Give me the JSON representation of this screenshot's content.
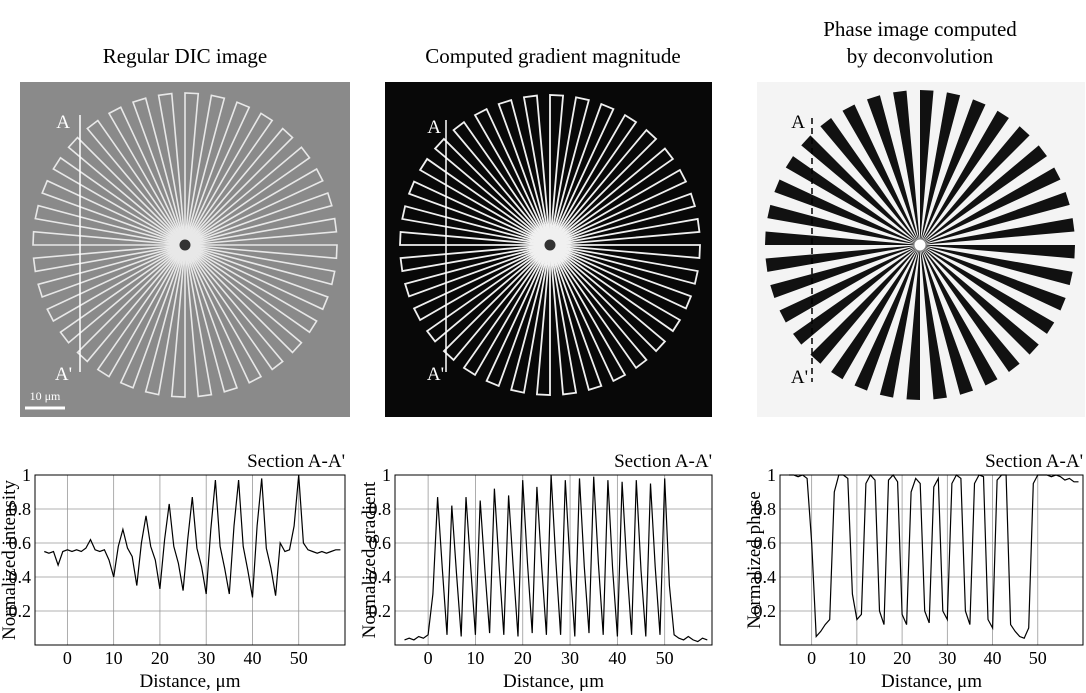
{
  "panels": [
    {
      "title_lines": [
        "Regular DIC image"
      ],
      "labels": {
        "top": "A",
        "bottom": "A'"
      },
      "scale_bar": "10 μm"
    },
    {
      "title_lines": [
        "Computed gradient magnitude"
      ],
      "labels": {
        "top": "A",
        "bottom": "A'"
      }
    },
    {
      "title_lines": [
        "Phase image computed",
        "by deconvolution"
      ],
      "labels": {
        "top": "A",
        "bottom": "A'"
      }
    }
  ],
  "chart_data": [
    {
      "type": "line",
      "annotation": "Section A-A'",
      "x_label": "Distance, μm",
      "y_label": "Normalized intensity",
      "color": "#000000",
      "grid": true,
      "xlim": [
        -7,
        60
      ],
      "xticks": [
        0,
        10,
        20,
        30,
        40,
        50
      ],
      "ylim": [
        0,
        1
      ],
      "yticks": [
        0.2,
        0.4,
        0.6,
        0.8,
        1
      ],
      "x": [
        -5,
        -4,
        -3,
        -2,
        -1,
        0,
        1,
        2,
        3,
        4,
        5,
        6,
        7,
        8,
        9,
        10,
        11,
        12,
        13,
        14,
        15,
        16,
        17,
        18,
        19,
        20,
        21,
        22,
        23,
        24,
        25,
        26,
        27,
        28,
        29,
        30,
        31,
        32,
        33,
        34,
        35,
        36,
        37,
        38,
        39,
        40,
        41,
        42,
        43,
        44,
        45,
        46,
        47,
        48,
        49,
        50,
        51,
        52,
        53,
        54,
        55,
        56,
        57,
        58,
        59
      ],
      "values": [
        0.55,
        0.54,
        0.55,
        0.47,
        0.55,
        0.56,
        0.55,
        0.56,
        0.55,
        0.57,
        0.62,
        0.56,
        0.55,
        0.56,
        0.5,
        0.4,
        0.58,
        0.68,
        0.57,
        0.52,
        0.35,
        0.6,
        0.76,
        0.58,
        0.5,
        0.33,
        0.62,
        0.83,
        0.58,
        0.48,
        0.32,
        0.62,
        0.87,
        0.57,
        0.46,
        0.3,
        0.68,
        0.97,
        0.58,
        0.45,
        0.3,
        0.7,
        0.97,
        0.58,
        0.44,
        0.28,
        0.7,
        0.98,
        0.57,
        0.45,
        0.29,
        0.6,
        0.55,
        0.56,
        0.7,
        1.0,
        0.6,
        0.56,
        0.55,
        0.54,
        0.55,
        0.54,
        0.55,
        0.56,
        0.56
      ]
    },
    {
      "type": "line",
      "annotation": "Section A-A'",
      "x_label": "Distance, μm",
      "y_label": "Normalized gradient",
      "color": "#000000",
      "grid": true,
      "xlim": [
        -7,
        60
      ],
      "xticks": [
        0,
        10,
        20,
        30,
        40,
        50
      ],
      "ylim": [
        0,
        1
      ],
      "yticks": [
        0.2,
        0.4,
        0.6,
        0.8,
        1
      ],
      "x": [
        -5,
        -4,
        -3,
        -2,
        -1,
        0,
        1,
        2,
        3,
        4,
        5,
        6,
        7,
        8,
        9,
        10,
        11,
        12,
        13,
        14,
        15,
        16,
        17,
        18,
        19,
        20,
        21,
        22,
        23,
        24,
        25,
        26,
        27,
        28,
        29,
        30,
        31,
        32,
        33,
        34,
        35,
        36,
        37,
        38,
        39,
        40,
        41,
        42,
        43,
        44,
        45,
        46,
        47,
        48,
        49,
        50,
        51,
        52,
        53,
        54,
        55,
        56,
        57,
        58,
        59
      ],
      "values": [
        0.03,
        0.04,
        0.03,
        0.05,
        0.04,
        0.06,
        0.3,
        0.87,
        0.45,
        0.06,
        0.82,
        0.42,
        0.05,
        0.87,
        0.46,
        0.06,
        0.85,
        0.44,
        0.07,
        0.92,
        0.47,
        0.06,
        0.88,
        0.45,
        0.05,
        0.97,
        0.48,
        0.07,
        0.93,
        0.46,
        0.06,
        1.0,
        0.49,
        0.06,
        0.97,
        0.47,
        0.05,
        0.98,
        0.46,
        0.07,
        0.99,
        0.48,
        0.06,
        0.97,
        0.45,
        0.05,
        0.96,
        0.47,
        0.06,
        0.97,
        0.44,
        0.05,
        0.95,
        0.46,
        0.06,
        0.98,
        0.35,
        0.06,
        0.04,
        0.03,
        0.05,
        0.03,
        0.02,
        0.04,
        0.03
      ]
    },
    {
      "type": "line",
      "annotation": "Section A-A'",
      "x_label": "Distance, μm",
      "y_label": "Normalized phase",
      "color": "#000000",
      "grid": true,
      "xlim": [
        -7,
        60
      ],
      "xticks": [
        0,
        10,
        20,
        30,
        40,
        50
      ],
      "ylim": [
        0,
        1
      ],
      "yticks": [
        0.2,
        0.4,
        0.6,
        0.8,
        1
      ],
      "x": [
        -5,
        -4,
        -3,
        -2,
        -1,
        0,
        1,
        2,
        3,
        4,
        5,
        6,
        7,
        8,
        9,
        10,
        11,
        12,
        13,
        14,
        15,
        16,
        17,
        18,
        19,
        20,
        21,
        22,
        23,
        24,
        25,
        26,
        27,
        28,
        29,
        30,
        31,
        32,
        33,
        34,
        35,
        36,
        37,
        38,
        39,
        40,
        41,
        42,
        43,
        44,
        45,
        46,
        47,
        48,
        49,
        50,
        51,
        52,
        53,
        54,
        55,
        56,
        57,
        58,
        59
      ],
      "values": [
        1.0,
        1.0,
        0.99,
        1.0,
        0.98,
        0.6,
        0.05,
        0.08,
        0.12,
        0.15,
        0.9,
        1.0,
        1.0,
        0.98,
        0.3,
        0.15,
        0.18,
        0.95,
        1.0,
        0.97,
        0.2,
        0.12,
        0.97,
        1.0,
        0.96,
        0.18,
        0.12,
        0.9,
        0.98,
        0.95,
        0.2,
        0.13,
        0.93,
        0.98,
        0.2,
        0.15,
        0.95,
        1.0,
        0.98,
        0.2,
        0.12,
        0.95,
        1.0,
        0.99,
        0.15,
        0.1,
        0.97,
        1.0,
        1.0,
        0.12,
        0.08,
        0.05,
        0.04,
        0.1,
        0.95,
        1.0,
        1.0,
        1.0,
        0.99,
        1.0,
        0.99,
        0.97,
        0.98,
        0.96,
        0.96
      ]
    }
  ]
}
